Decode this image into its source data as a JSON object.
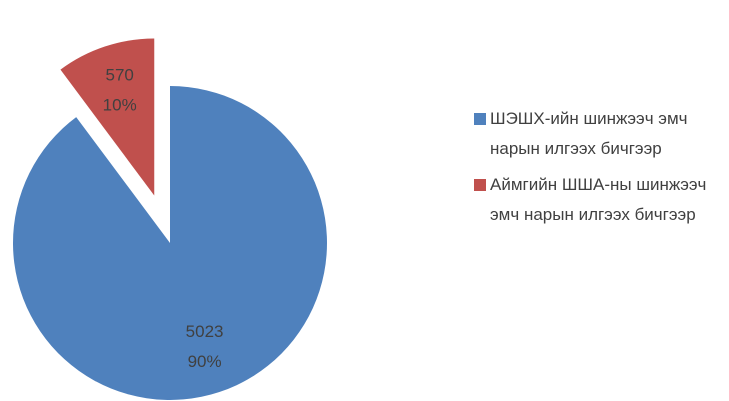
{
  "chart_data": {
    "type": "pie",
    "categories": [
      "ШЭШХ-ийн шинжээч эмч нарын илгээх бичгээр",
      "Аймгийн ШША-ны шинжээч эмч нарын илгээх бичгээр"
    ],
    "values": [
      5023,
      570
    ],
    "percent_labels": [
      "90%",
      "10%"
    ],
    "colors": [
      "#4f81bd",
      "#c0504d"
    ],
    "exploded": [
      false,
      true
    ],
    "legend": "right"
  }
}
